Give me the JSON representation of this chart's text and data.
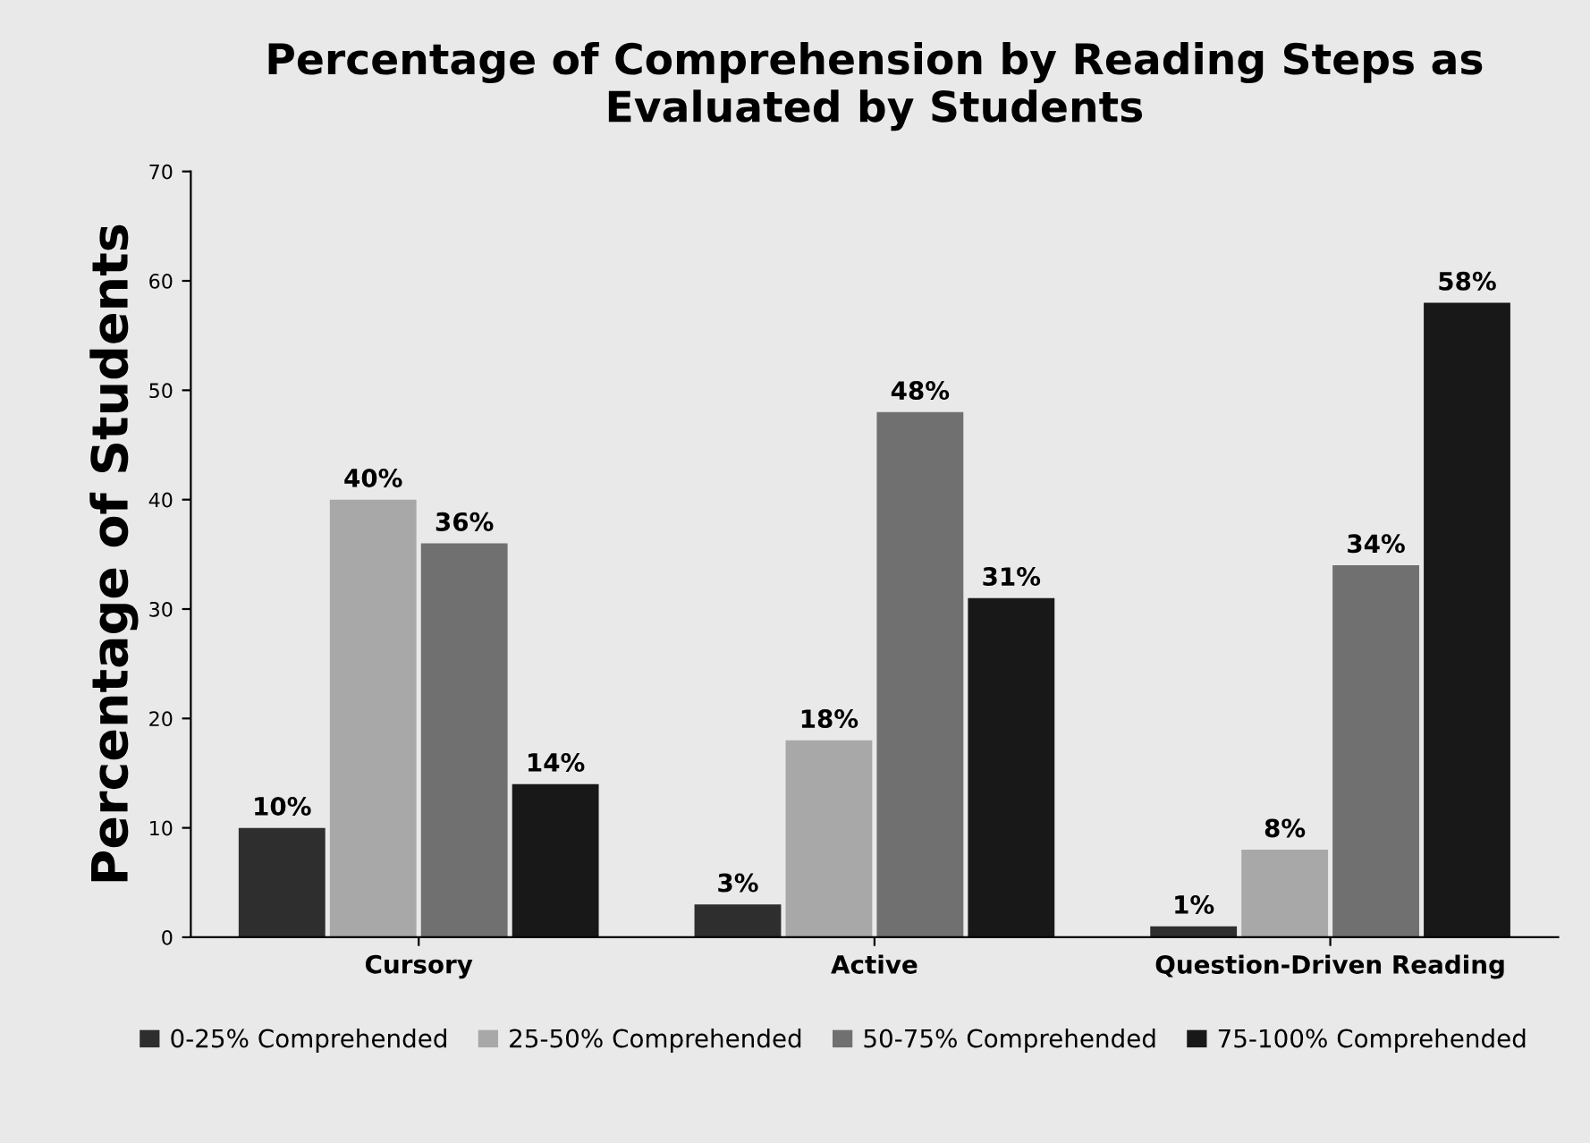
{
  "chart_data": {
    "type": "bar",
    "title": "Percentage of Comprehension by Reading Steps as\nEvaluated by Students",
    "ylabel": "Percentage of Students",
    "categories": [
      "Cursory",
      "Active",
      "Question-Driven Reading"
    ],
    "series": [
      {
        "name": "0-25% Comprehended",
        "color": "#2e2e2e",
        "values": [
          10,
          3,
          1
        ],
        "value_labels": [
          "10%",
          "3%",
          "1%"
        ]
      },
      {
        "name": "25-50% Comprehended",
        "color": "#a8a8a8",
        "values": [
          40,
          18,
          8
        ],
        "value_labels": [
          "40%",
          "18%",
          "8%"
        ]
      },
      {
        "name": "50-75% Comprehended",
        "color": "#707070",
        "values": [
          36,
          48,
          34
        ],
        "value_labels": [
          "36%",
          "48%",
          "34%"
        ]
      },
      {
        "name": "75-100% Comprehended",
        "color": "#181818",
        "values": [
          14,
          31,
          58
        ],
        "value_labels": [
          "14%",
          "31%",
          "58%"
        ]
      }
    ],
    "ylim": [
      0,
      70
    ],
    "yticks": [
      0,
      10,
      20,
      30,
      40,
      50,
      60,
      70
    ],
    "grid": false,
    "legend": "bottom"
  }
}
